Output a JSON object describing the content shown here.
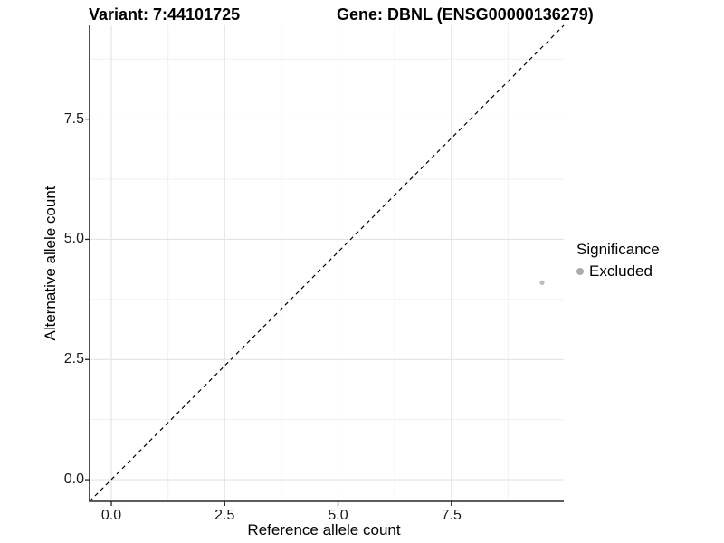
{
  "chart_data": {
    "type": "scatter",
    "title_variant": "Variant: 7:44101725",
    "title_gene": "Gene: DBNL (ENSG00000136279)",
    "xlabel": "Reference allele count",
    "ylabel": "Alternative allele count",
    "x_tick_labels": [
      "0.0",
      "2.5",
      "5.0",
      "7.5"
    ],
    "x_tick_values": [
      0,
      2.5,
      5,
      7.5
    ],
    "y_tick_labels": [
      "0.0",
      "2.5",
      "5.0",
      "7.5"
    ],
    "y_tick_values": [
      0,
      2.5,
      5,
      7.5
    ],
    "xlim": [
      -0.48,
      9.98
    ],
    "ylim": [
      -0.45,
      9.45
    ],
    "grid": {
      "visible": true,
      "major_x": [
        0,
        2.5,
        5,
        7.5
      ],
      "minor_x": [
        1.25,
        3.75,
        6.25,
        8.75
      ],
      "major_y": [
        0,
        2.5,
        5,
        7.5
      ],
      "minor_y": [
        1.25,
        3.75,
        6.25,
        8.75
      ]
    },
    "series": [
      {
        "name": "Excluded",
        "color": "#bdbdbd",
        "point_radius": 2.6,
        "points": [
          [
            9.5,
            4.1
          ]
        ]
      }
    ],
    "reference_line": {
      "kind": "identity y=x",
      "style": "dashed",
      "color": "#000000",
      "from": [
        -0.48,
        -0.45
      ],
      "to": [
        9.98,
        9.45
      ]
    },
    "legend": {
      "position": "right",
      "title": "Significance",
      "items": [
        {
          "label": "Excluded",
          "color": "#ababab",
          "icon": "legend-point-icon"
        }
      ]
    },
    "colors": {
      "background": "#ffffff",
      "grid_major": "#e3e3e3",
      "grid_minor": "#f0f0f0",
      "axis_line": "#262626",
      "tick_label": "#1a1a1a",
      "title": "#000000"
    }
  }
}
